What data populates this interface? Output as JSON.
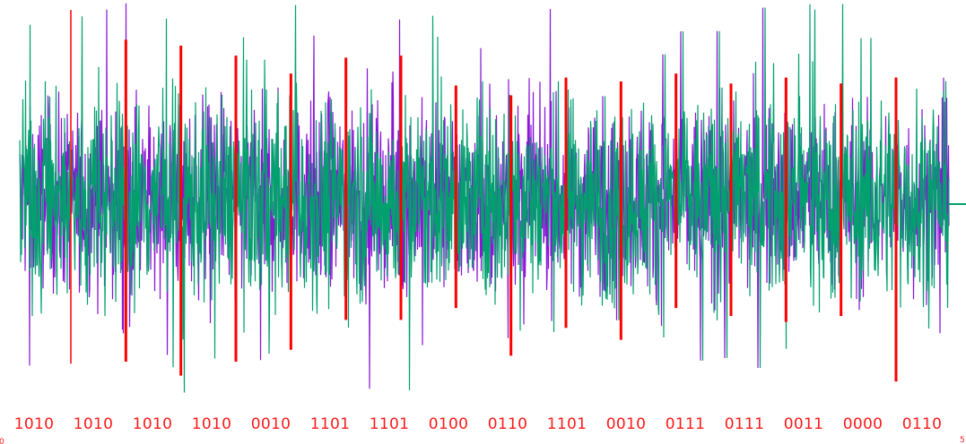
{
  "chart_data": {
    "type": "line",
    "title": "",
    "xlabel": "",
    "ylabel": "",
    "grid": false,
    "legend": "none",
    "colors": {
      "purple_trace": "#8a16d6",
      "green_trace": "#03a06f",
      "markers": "#ff0000",
      "labels": "#ff1a1a"
    },
    "series": [
      {
        "role": "purple-noise-trace",
        "amplitude": 0.55,
        "spike_max": 1.0
      },
      {
        "role": "green-noise-trace",
        "amplitude": 0.6,
        "spike_max": 1.0
      }
    ],
    "ylim": [
      -1,
      1
    ],
    "bit_groups": [
      "1010",
      "1010",
      "1010",
      "1010",
      "0010",
      "1101",
      "1101",
      "0100",
      "0110",
      "1101",
      "0010",
      "0111",
      "0111",
      "0011",
      "0000",
      "0110"
    ],
    "markers": [
      {
        "up": 0.95,
        "down": 0.83
      },
      {
        "up": 0.8,
        "down": 0.82
      },
      {
        "up": 0.77,
        "down": 0.89
      },
      {
        "up": 0.72,
        "down": 0.82
      },
      {
        "up": 0.63,
        "down": 0.76
      },
      {
        "up": 0.71,
        "down": 0.61
      },
      {
        "up": 0.72,
        "down": 0.61
      },
      {
        "up": 0.57,
        "down": 0.55
      },
      {
        "up": 0.52,
        "down": 0.79
      },
      {
        "up": 0.61,
        "down": 0.65
      },
      {
        "up": 0.59,
        "down": 0.71
      },
      {
        "up": 0.63,
        "down": 0.55
      },
      {
        "up": 0.58,
        "down": 0.59
      },
      {
        "up": 0.61,
        "down": 0.62
      },
      {
        "up": 0.58,
        "down": 0.59
      },
      {
        "up": 0.61,
        "down": 0.92
      }
    ],
    "edge_labels": [
      "0",
      "5"
    ]
  }
}
